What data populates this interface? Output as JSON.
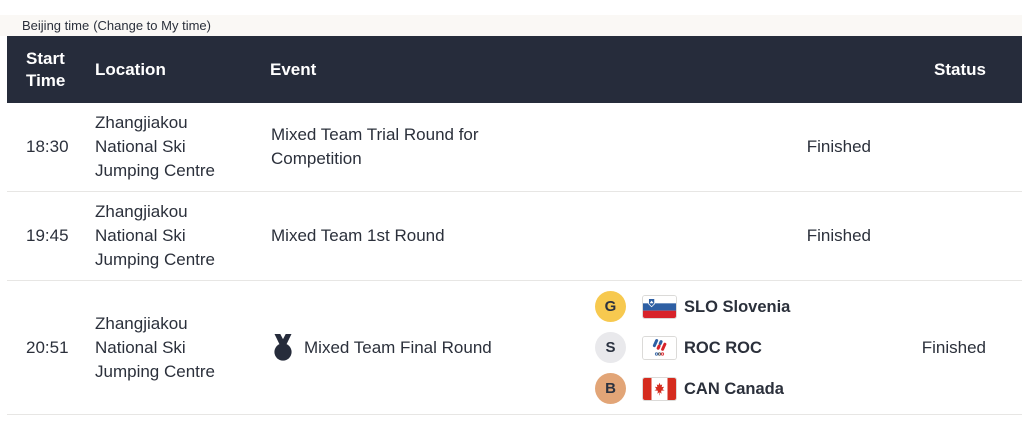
{
  "timezone_bar": {
    "prefix": "Beijing time",
    "change_link": "(Change to My time)"
  },
  "table": {
    "columns": {
      "start_time": "Start Time",
      "location": "Location",
      "event": "Event",
      "status": "Status"
    },
    "rows": [
      {
        "start_time": "18:30",
        "location": "Zhangjiakou National Ski Jumping Centre",
        "event": "Mixed Team Trial Round for Competition",
        "medal_event": false,
        "medals": [],
        "status": "Finished"
      },
      {
        "start_time": "19:45",
        "location": "Zhangjiakou National Ski Jumping Centre",
        "event": "Mixed Team 1st Round",
        "medal_event": false,
        "medals": [],
        "status": "Finished"
      },
      {
        "start_time": "20:51",
        "location": "Zhangjiakou National Ski Jumping Centre",
        "event": "Mixed Team Final Round",
        "medal_event": true,
        "medals": [
          {
            "medal": "G",
            "flag": "slo",
            "team": "SLO Slovenia"
          },
          {
            "medal": "S",
            "flag": "roc",
            "team": "ROC ROC"
          },
          {
            "medal": "B",
            "flag": "can",
            "team": "CAN Canada"
          }
        ],
        "status": "Finished"
      }
    ]
  },
  "colors": {
    "header_bg": "#262C3B",
    "text": "#2B303B",
    "timezone_bar_bg": "#FAF8F5",
    "separator": "#E7E6E4",
    "gold": "#F7C94F",
    "silver": "#E9E9EC",
    "bronze": "#E2A577"
  }
}
